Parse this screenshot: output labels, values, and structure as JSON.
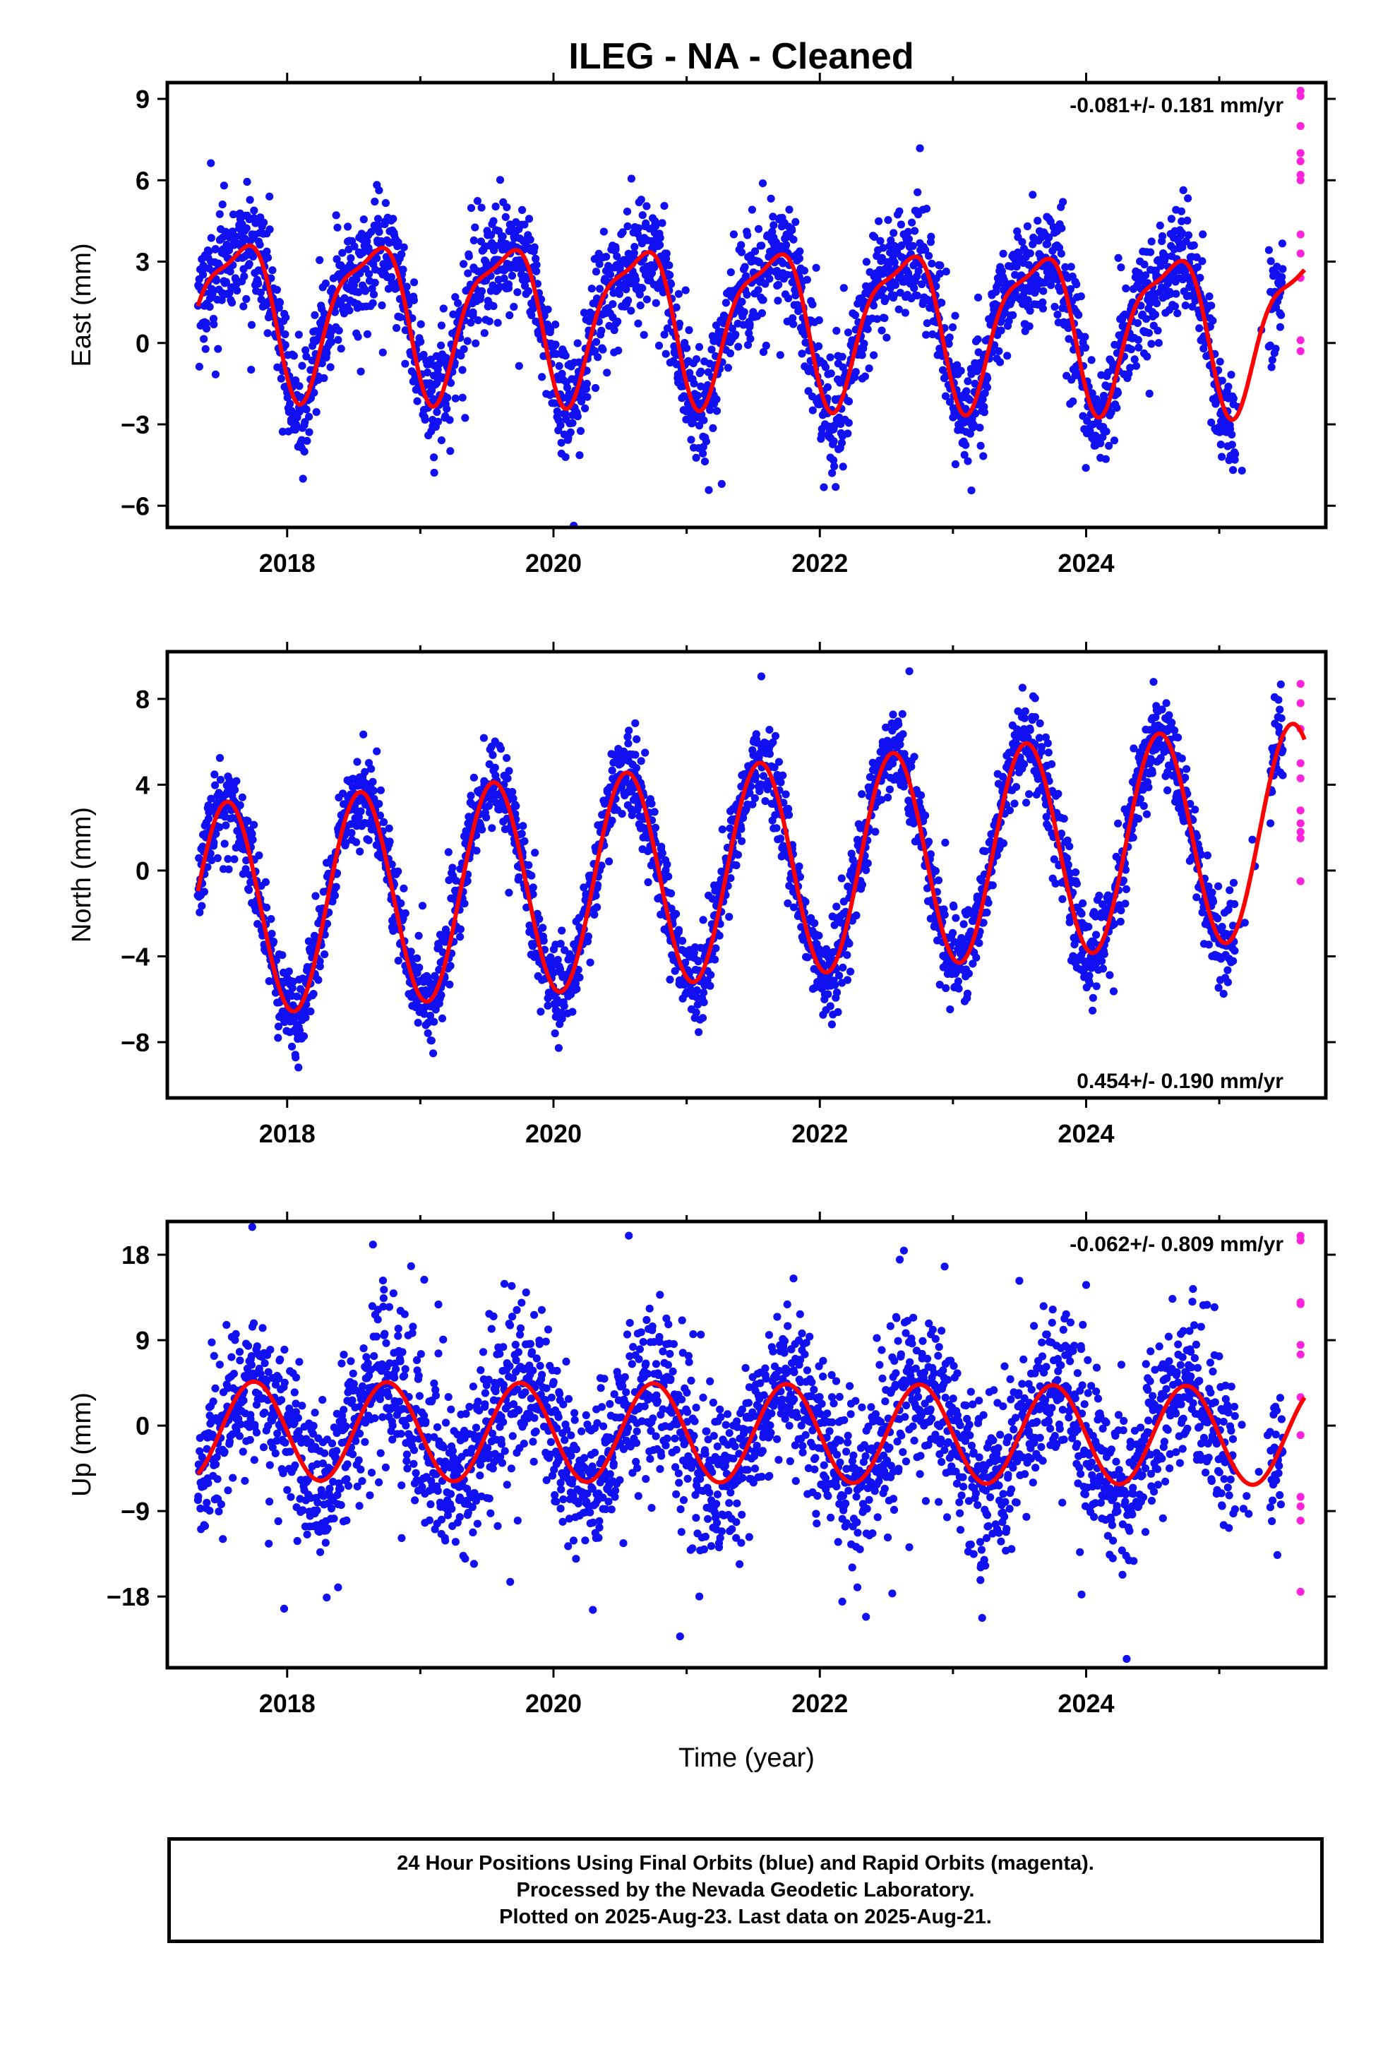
{
  "title": "ILEG  - NA - Cleaned",
  "colors": {
    "final": "#1010f0",
    "rapid": "#ff22dd",
    "model": "#ff0000",
    "frame": "#000000"
  },
  "footer": {
    "line1": "24 Hour Positions Using Final Orbits (blue) and Rapid Orbits (magenta).",
    "line2": "Processed by the Nevada Geodetic Laboratory.",
    "line3": "Plotted on 2025-Aug-23. Last data on 2025-Aug-21."
  },
  "chart_data": [
    {
      "type": "scatter",
      "ylabel": "East (mm)",
      "xlabel": "",
      "rate_label": "-0.081+/- 0.181 mm/yr",
      "rate_position": "top-right",
      "xlim": [
        2017.1,
        2025.8
      ],
      "ylim": [
        -6.8,
        9.6
      ],
      "x_ticks": [
        2018,
        2020,
        2022,
        2024
      ],
      "y_ticks": [
        -6,
        -3,
        0,
        3,
        6,
        9
      ],
      "y_tick_labels": [
        "−6",
        "−3",
        "0",
        "3",
        "6",
        "9"
      ],
      "data_span": [
        2017.33,
        2025.48
      ],
      "gap": [
        2025.12,
        2025.38
      ],
      "model": {
        "mean": 0.9,
        "trend": -0.081,
        "amp1": 2.7,
        "phase1": 0.37,
        "amp2": 0.8,
        "phase2": 0.2
      },
      "scatter_sigma": 1.0,
      "outlier_rate": 0.012,
      "final_points": 2800,
      "rapid": {
        "x": 2025.61,
        "y": [
          9.3,
          9.1,
          8.0,
          7.0,
          6.7,
          6.2,
          6.0,
          4.0,
          3.3,
          2.4,
          0.1,
          -0.3
        ]
      }
    },
    {
      "type": "scatter",
      "ylabel": "North (mm)",
      "xlabel": "",
      "rate_label": "0.454+/- 0.190 mm/yr",
      "rate_position": "bottom-right",
      "xlim": [
        2017.1,
        2025.8
      ],
      "ylim": [
        -10.6,
        10.2
      ],
      "x_ticks": [
        2018,
        2020,
        2022,
        2024
      ],
      "y_ticks": [
        -8,
        -4,
        0,
        4,
        8
      ],
      "y_tick_labels": [
        "−8",
        "−4",
        "0",
        "4",
        "8"
      ],
      "data_span": [
        2017.33,
        2025.48
      ],
      "gap": [
        2025.12,
        2025.38
      ],
      "model": {
        "mean": 0.0,
        "trend": 0.454,
        "amp1": 5.0,
        "phase1": 0.3,
        "amp2": 0.0,
        "phase2": 0.0
      },
      "scatter_sigma": 1.0,
      "outlier_rate": 0.01,
      "final_points": 2800,
      "rapid": {
        "x": 2025.61,
        "y": [
          8.7,
          7.8,
          6.6,
          5.0,
          4.3,
          2.8,
          2.2,
          1.8,
          1.5,
          -0.5
        ]
      }
    },
    {
      "type": "scatter",
      "ylabel": "Up (mm)",
      "xlabel": "Time (year)",
      "rate_label": "-0.062+/- 0.809 mm/yr",
      "rate_position": "top-right",
      "xlim": [
        2017.1,
        2025.8
      ],
      "ylim": [
        -25.5,
        21.5
      ],
      "x_ticks": [
        2018,
        2020,
        2022,
        2024
      ],
      "y_ticks": [
        -18,
        -9,
        0,
        9,
        18
      ],
      "y_tick_labels": [
        "−18",
        "−9",
        "0",
        "9",
        "18"
      ],
      "data_span": [
        2017.33,
        2025.48
      ],
      "gap": [
        2025.12,
        2025.38
      ],
      "model": {
        "mean": -0.8,
        "trend": -0.062,
        "amp1": 5.2,
        "phase1": 0.5,
        "amp2": 0.0,
        "phase2": 0.0
      },
      "scatter_sigma": 4.2,
      "outlier_rate": 0.02,
      "final_points": 2800,
      "rapid": {
        "x": 2025.61,
        "y": [
          20.0,
          19.5,
          13.0,
          12.8,
          8.5,
          7.5,
          3.0,
          -1.0,
          -7.5,
          -8.5,
          -10.0,
          -17.5
        ]
      }
    }
  ]
}
